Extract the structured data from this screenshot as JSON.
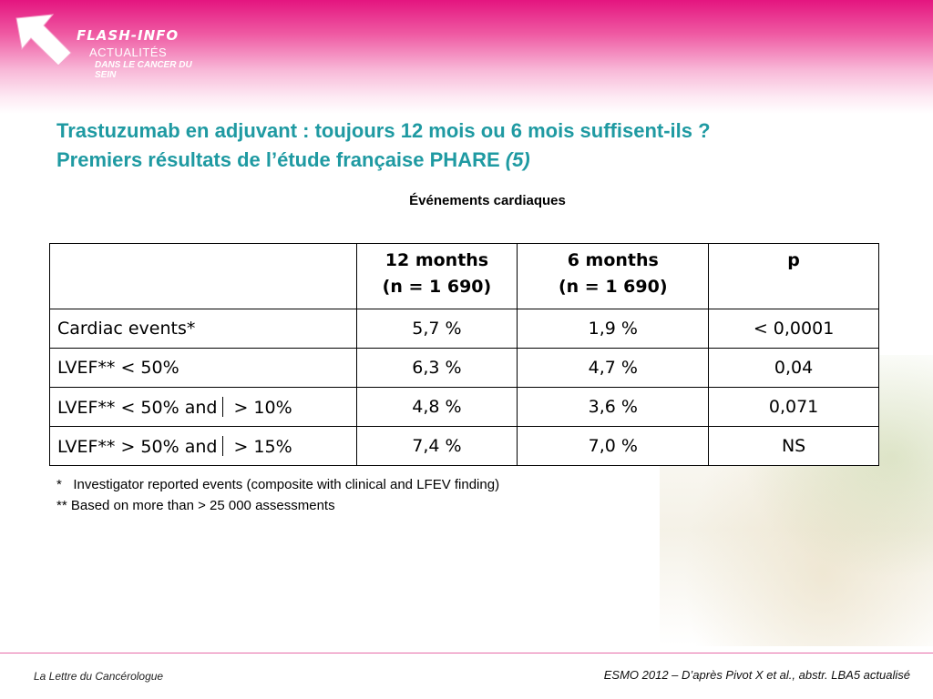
{
  "logo": {
    "title": "FLASH-INFO",
    "line1": "ACTUALITÉS",
    "line2": "DANS LE CANCER DU SEIN"
  },
  "slide": {
    "title_line1": "Trastuzumab en adjuvant : toujours 12 mois ou 6 mois suffisent-ils ?",
    "title_line2": "Premiers résultats de l’étude française PHARE ",
    "title_ref": "(5)",
    "subtitle": "Événements cardiaques"
  },
  "table": {
    "headers": [
      {
        "line1": "",
        "line2": ""
      },
      {
        "line1": "12 months",
        "line2": "(n = 1 690)"
      },
      {
        "line1": "6 months",
        "line2": "(n = 1 690)"
      },
      {
        "line1": "p",
        "line2": ""
      }
    ],
    "rows": [
      [
        "Cardiac events*",
        "5,7 %",
        "1,9 %",
        "< 0,0001"
      ],
      [
        "LVEF** < 50%",
        "6,3 %",
        "4,7 %",
        "0,04"
      ],
      [
        "LVEF** < 50% and",
        "4,8 %",
        "3,6 %",
        "0,071"
      ],
      [
        "LVEF** > 50% and",
        "7,4 %",
        "7,0 %",
        "NS"
      ]
    ],
    "row_suffixes": [
      "",
      "",
      "> 10%",
      "> 15%"
    ]
  },
  "footnotes": [
    "*   Investigator reported events (composite with clinical and LFEV finding)",
    "** Based on more than > 25 000 assessments"
  ],
  "footer": {
    "left": "La Lettre du Cancérologue",
    "right": "ESMO 2012 – D’après Pivot X et al., abstr. LBA5 actualisé"
  },
  "colors": {
    "brand_pink": "#e4157f",
    "title_teal": "#1f9aa2"
  }
}
